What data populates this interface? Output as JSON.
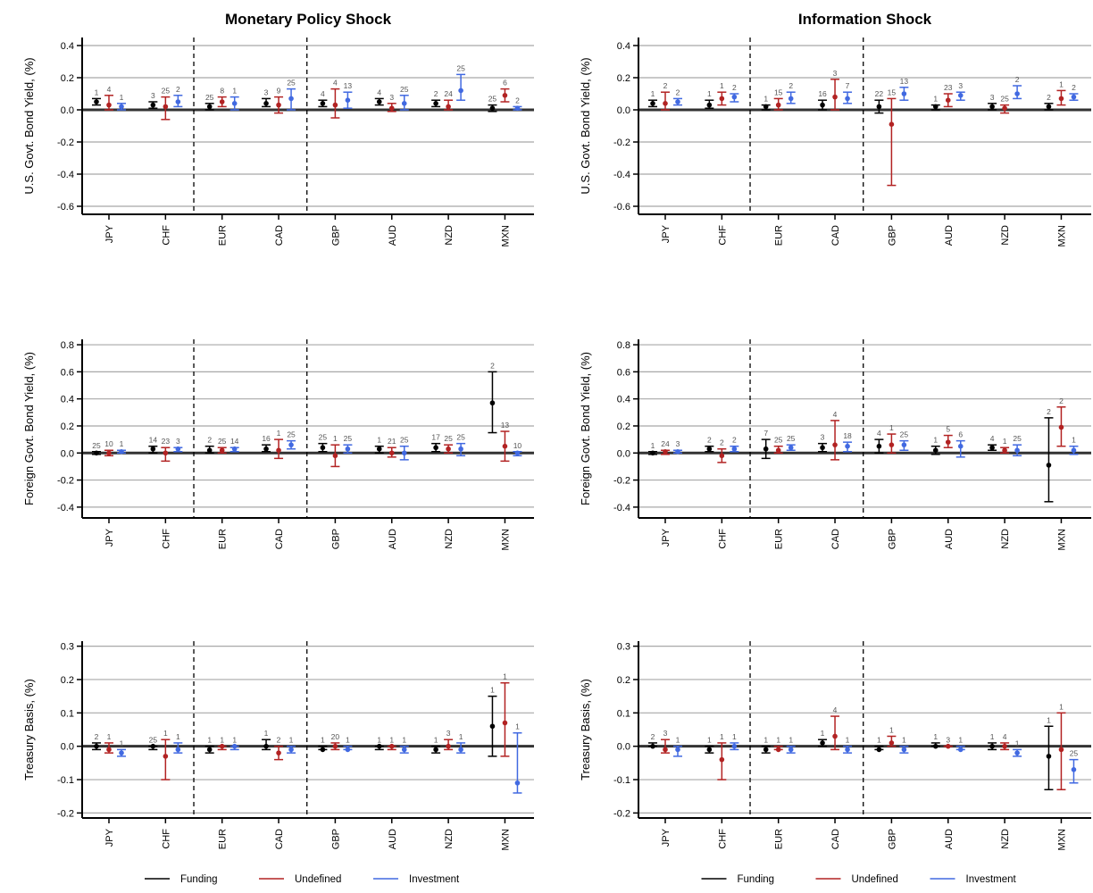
{
  "chart_data": [
    {
      "type": "scatter",
      "title": "Monetary Policy Shock",
      "ylabel": "U.S. Govt. Bond Yield, (%)",
      "ylim": [
        -0.65,
        0.45
      ],
      "yticks": [
        -0.6,
        -0.4,
        -0.2,
        0.0,
        0.2,
        0.4
      ],
      "categories": [
        "JPY",
        "CHF",
        "EUR",
        "CAD",
        "GBP",
        "AUD",
        "NZD",
        "MXN"
      ],
      "series": [
        {
          "name": "Funding",
          "color": "#000000",
          "values": [
            0.05,
            0.03,
            0.02,
            0.04,
            0.04,
            0.05,
            0.04,
            0.01
          ],
          "lower": [
            0.03,
            0.01,
            0.0,
            0.02,
            0.02,
            0.03,
            0.02,
            -0.01
          ],
          "upper": [
            0.07,
            0.05,
            0.04,
            0.07,
            0.06,
            0.07,
            0.06,
            0.03
          ],
          "labels": [
            "1",
            "3",
            "25",
            "3",
            "4",
            "4",
            "2",
            "25"
          ]
        },
        {
          "name": "Undefined",
          "color": "#b22222",
          "values": [
            0.03,
            0.02,
            0.05,
            0.03,
            0.03,
            0.01,
            0.02,
            0.09
          ],
          "lower": [
            0.0,
            -0.06,
            0.02,
            -0.02,
            -0.05,
            -0.01,
            0.0,
            0.05
          ],
          "upper": [
            0.09,
            0.08,
            0.08,
            0.08,
            0.13,
            0.04,
            0.06,
            0.13
          ],
          "labels": [
            "4",
            "25",
            "8",
            "9",
            "4",
            "3",
            "24",
            "6"
          ]
        },
        {
          "name": "Investment",
          "color": "#4169e1",
          "values": [
            0.02,
            0.05,
            0.04,
            0.07,
            0.06,
            0.04,
            0.12,
            0.01
          ],
          "lower": [
            0.0,
            0.02,
            0.0,
            0.0,
            0.01,
            0.0,
            0.06,
            0.0
          ],
          "upper": [
            0.04,
            0.09,
            0.08,
            0.13,
            0.11,
            0.09,
            0.22,
            0.02
          ],
          "labels": [
            "1",
            "2",
            "1",
            "25",
            "13",
            "25",
            "25",
            "2"
          ]
        }
      ]
    },
    {
      "type": "scatter",
      "title": "Information Shock",
      "ylabel": "U.S. Govt. Bond Yield, (%)",
      "ylim": [
        -0.65,
        0.45
      ],
      "yticks": [
        -0.6,
        -0.4,
        -0.2,
        0.0,
        0.2,
        0.4
      ],
      "categories": [
        "JPY",
        "CHF",
        "EUR",
        "CAD",
        "GBP",
        "AUD",
        "NZD",
        "MXN"
      ],
      "series": [
        {
          "name": "Funding",
          "color": "#000000",
          "values": [
            0.04,
            0.03,
            0.02,
            0.03,
            0.02,
            0.02,
            0.02,
            0.02
          ],
          "lower": [
            0.02,
            0.01,
            0.0,
            0.0,
            -0.02,
            0.0,
            0.0,
            0.0
          ],
          "upper": [
            0.06,
            0.06,
            0.03,
            0.06,
            0.06,
            0.03,
            0.04,
            0.04
          ],
          "labels": [
            "1",
            "1",
            "1",
            "16",
            "22",
            "1",
            "3",
            "2"
          ]
        },
        {
          "name": "Undefined",
          "color": "#b22222",
          "values": [
            0.04,
            0.07,
            0.03,
            0.08,
            -0.09,
            0.06,
            0.01,
            0.07
          ],
          "lower": [
            0.0,
            0.03,
            0.0,
            0.0,
            -0.47,
            0.02,
            -0.02,
            0.03
          ],
          "upper": [
            0.11,
            0.11,
            0.07,
            0.19,
            0.07,
            0.1,
            0.03,
            0.12
          ],
          "labels": [
            "2",
            "1",
            "15",
            "3",
            "15",
            "23",
            "25",
            "1"
          ]
        },
        {
          "name": "Investment",
          "color": "#4169e1",
          "values": [
            0.05,
            0.08,
            0.07,
            0.07,
            0.1,
            0.09,
            0.1,
            0.08
          ],
          "lower": [
            0.03,
            0.05,
            0.04,
            0.04,
            0.06,
            0.06,
            0.07,
            0.06
          ],
          "upper": [
            0.07,
            0.1,
            0.11,
            0.11,
            0.14,
            0.11,
            0.15,
            0.1
          ],
          "labels": [
            "2",
            "2",
            "2",
            "7",
            "13",
            "3",
            "2",
            "2"
          ]
        }
      ]
    },
    {
      "type": "scatter",
      "title": "",
      "ylabel": "Foreign Govt. Bond Yield, (%)",
      "ylim": [
        -0.48,
        0.84
      ],
      "yticks": [
        -0.4,
        -0.2,
        0.0,
        0.2,
        0.4,
        0.6,
        0.8
      ],
      "categories": [
        "JPY",
        "CHF",
        "EUR",
        "CAD",
        "GBP",
        "AUD",
        "NZD",
        "MXN"
      ],
      "series": [
        {
          "name": "Funding",
          "color": "#000000",
          "values": [
            0.0,
            0.03,
            0.02,
            0.03,
            0.04,
            0.03,
            0.04,
            0.37
          ],
          "lower": [
            -0.01,
            0.0,
            0.0,
            0.01,
            0.01,
            0.0,
            0.01,
            0.15
          ],
          "upper": [
            0.01,
            0.05,
            0.05,
            0.06,
            0.07,
            0.05,
            0.07,
            0.6
          ],
          "labels": [
            "25",
            "14",
            "2",
            "16",
            "25",
            "1",
            "17",
            "2"
          ]
        },
        {
          "name": "Undefined",
          "color": "#b22222",
          "values": [
            0.0,
            0.0,
            0.02,
            0.02,
            -0.02,
            0.0,
            0.03,
            0.05
          ],
          "lower": [
            -0.02,
            -0.06,
            0.0,
            -0.04,
            -0.1,
            -0.03,
            0.0,
            -0.06
          ],
          "upper": [
            0.02,
            0.04,
            0.04,
            0.1,
            0.06,
            0.04,
            0.06,
            0.16
          ],
          "labels": [
            "10",
            "23",
            "25",
            "1",
            "1",
            "21",
            "25",
            "13"
          ]
        },
        {
          "name": "Investment",
          "color": "#4169e1",
          "values": [
            0.01,
            0.03,
            0.03,
            0.06,
            0.03,
            0.0,
            0.03,
            0.0
          ],
          "lower": [
            0.0,
            0.01,
            0.01,
            0.03,
            0.0,
            -0.05,
            -0.02,
            -0.02
          ],
          "upper": [
            0.02,
            0.04,
            0.04,
            0.09,
            0.06,
            0.05,
            0.07,
            0.01
          ],
          "labels": [
            "1",
            "3",
            "14",
            "25",
            "25",
            "25",
            "25",
            "10"
          ]
        }
      ]
    },
    {
      "type": "scatter",
      "title": "",
      "ylabel": "Foreign Govt. Bond Yield, (%)",
      "ylim": [
        -0.48,
        0.84
      ],
      "yticks": [
        -0.4,
        -0.2,
        0.0,
        0.2,
        0.4,
        0.6,
        0.8
      ],
      "categories": [
        "JPY",
        "CHF",
        "EUR",
        "CAD",
        "GBP",
        "AUD",
        "NZD",
        "MXN"
      ],
      "series": [
        {
          "name": "Funding",
          "color": "#000000",
          "values": [
            0.0,
            0.03,
            0.03,
            0.04,
            0.05,
            0.02,
            0.04,
            -0.09
          ],
          "lower": [
            -0.01,
            0.01,
            -0.04,
            0.01,
            0.0,
            -0.01,
            0.02,
            -0.36
          ],
          "upper": [
            0.01,
            0.05,
            0.1,
            0.07,
            0.1,
            0.05,
            0.06,
            0.26
          ],
          "labels": [
            "1",
            "2",
            "7",
            "3",
            "4",
            "1",
            "4",
            "2"
          ]
        },
        {
          "name": "Undefined",
          "color": "#b22222",
          "values": [
            0.01,
            -0.02,
            0.02,
            0.06,
            0.06,
            0.08,
            0.02,
            0.19
          ],
          "lower": [
            -0.01,
            -0.07,
            0.0,
            -0.05,
            0.0,
            0.04,
            0.0,
            0.05
          ],
          "upper": [
            0.02,
            0.03,
            0.05,
            0.24,
            0.14,
            0.13,
            0.04,
            0.34
          ],
          "labels": [
            "24",
            "2",
            "25",
            "4",
            "1",
            "5",
            "1",
            "2"
          ]
        },
        {
          "name": "Investment",
          "color": "#4169e1",
          "values": [
            0.01,
            0.03,
            0.04,
            0.05,
            0.06,
            0.05,
            0.02,
            0.02
          ],
          "lower": [
            0.0,
            0.01,
            0.02,
            0.01,
            0.02,
            -0.03,
            -0.02,
            -0.01
          ],
          "upper": [
            0.02,
            0.05,
            0.06,
            0.08,
            0.09,
            0.09,
            0.06,
            0.05
          ],
          "labels": [
            "3",
            "2",
            "25",
            "18",
            "25",
            "6",
            "25",
            "1"
          ]
        }
      ]
    },
    {
      "type": "scatter",
      "title": "",
      "ylabel": "Treasury Basis, (%)",
      "ylim": [
        -0.215,
        0.315
      ],
      "yticks": [
        -0.2,
        -0.1,
        0.0,
        0.1,
        0.2,
        0.3
      ],
      "categories": [
        "JPY",
        "CHF",
        "EUR",
        "CAD",
        "GBP",
        "AUD",
        "NZD",
        "MXN"
      ],
      "series": [
        {
          "name": "Funding",
          "color": "#000000",
          "values": [
            0.0,
            0.0,
            -0.01,
            0.0,
            -0.01,
            0.0,
            -0.01,
            0.06
          ],
          "lower": [
            -0.01,
            -0.01,
            -0.02,
            -0.01,
            -0.01,
            -0.01,
            -0.02,
            -0.03
          ],
          "upper": [
            0.01,
            0.0,
            0.0,
            0.02,
            0.0,
            0.0,
            0.0,
            0.15
          ],
          "labels": [
            "2",
            "25",
            "1",
            "1",
            "1",
            "1",
            "1",
            "1"
          ]
        },
        {
          "name": "Undefined",
          "color": "#b22222",
          "values": [
            -0.01,
            -0.03,
            0.0,
            -0.02,
            0.0,
            0.0,
            0.0,
            0.07
          ],
          "lower": [
            -0.02,
            -0.1,
            -0.01,
            -0.04,
            -0.01,
            -0.01,
            -0.01,
            -0.03
          ],
          "upper": [
            0.01,
            0.02,
            0.0,
            0.0,
            0.01,
            0.0,
            0.02,
            0.19
          ],
          "labels": [
            "1",
            "1",
            "1",
            "2",
            "20",
            "1",
            "3",
            "1"
          ]
        },
        {
          "name": "Investment",
          "color": "#4169e1",
          "values": [
            -0.02,
            -0.01,
            0.0,
            -0.01,
            -0.01,
            -0.01,
            -0.01,
            -0.11
          ],
          "lower": [
            -0.03,
            -0.02,
            -0.01,
            -0.02,
            -0.01,
            -0.02,
            -0.02,
            -0.14
          ],
          "upper": [
            -0.01,
            0.01,
            0.0,
            0.0,
            0.0,
            0.0,
            0.01,
            0.04
          ],
          "labels": [
            "1",
            "1",
            "1",
            "1",
            "1",
            "1",
            "1",
            "1"
          ]
        }
      ]
    },
    {
      "type": "scatter",
      "title": "",
      "ylabel": "Treasury Basis, (%)",
      "ylim": [
        -0.215,
        0.315
      ],
      "yticks": [
        -0.2,
        -0.1,
        0.0,
        0.1,
        0.2,
        0.3
      ],
      "categories": [
        "JPY",
        "CHF",
        "EUR",
        "CAD",
        "GBP",
        "AUD",
        "NZD",
        "MXN"
      ],
      "series": [
        {
          "name": "Funding",
          "color": "#000000",
          "values": [
            0.0,
            -0.01,
            -0.01,
            0.01,
            -0.01,
            0.0,
            0.0,
            -0.03
          ],
          "lower": [
            0.0,
            -0.02,
            -0.02,
            0.0,
            -0.01,
            0.0,
            -0.01,
            -0.13
          ],
          "upper": [
            0.01,
            0.0,
            0.0,
            0.02,
            0.0,
            0.01,
            0.01,
            0.06
          ],
          "labels": [
            "2",
            "1",
            "1",
            "1",
            "1",
            "1",
            "1",
            "1"
          ]
        },
        {
          "name": "Undefined",
          "color": "#b22222",
          "values": [
            -0.01,
            -0.04,
            -0.01,
            0.03,
            0.01,
            0.0,
            0.0,
            -0.01
          ],
          "lower": [
            -0.02,
            -0.1,
            -0.01,
            -0.01,
            0.0,
            0.0,
            -0.01,
            -0.13
          ],
          "upper": [
            0.02,
            0.01,
            0.0,
            0.09,
            0.03,
            0.0,
            0.01,
            0.1
          ],
          "labels": [
            "3",
            "1",
            "1",
            "4",
            "1",
            "3",
            "4",
            "1"
          ]
        },
        {
          "name": "Investment",
          "color": "#4169e1",
          "values": [
            -0.01,
            0.0,
            -0.01,
            -0.01,
            -0.01,
            -0.01,
            -0.02,
            -0.07
          ],
          "lower": [
            -0.03,
            -0.01,
            -0.02,
            -0.02,
            -0.02,
            -0.01,
            -0.03,
            -0.11
          ],
          "upper": [
            0.0,
            0.01,
            0.0,
            0.0,
            0.0,
            0.0,
            -0.01,
            -0.04
          ],
          "labels": [
            "1",
            "1",
            "1",
            "1",
            "1",
            "1",
            "1",
            "25"
          ]
        }
      ]
    }
  ],
  "legend": {
    "entries": [
      {
        "label": "Funding",
        "color": "#000000"
      },
      {
        "label": "Undefined",
        "color": "#b22222"
      },
      {
        "label": "Investment",
        "color": "#4169e1"
      }
    ]
  }
}
